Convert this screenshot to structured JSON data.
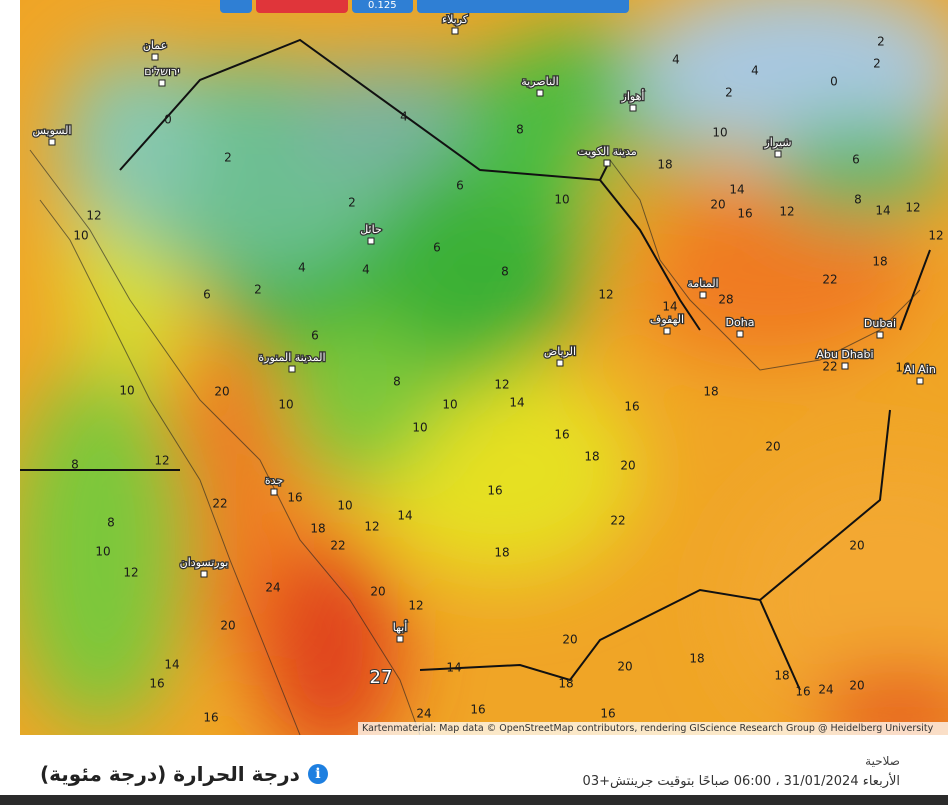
{
  "toolbar": {
    "value": "0.125"
  },
  "map": {
    "cities": [
      "عمان",
      "ירושלים",
      "السويس",
      "كربلاء",
      "الناصرية",
      "أهواز",
      "شيراز",
      "مدينة الكويت",
      "حائل",
      "المنامة",
      "الهفوف",
      "Doha",
      "Dubai",
      "Abu Dhabi",
      "Al Ain",
      "الرياض",
      "المدينة المنورة",
      "جدة",
      "بورتسودان",
      "أبها"
    ],
    "temperatures": [
      2,
      2,
      4,
      4,
      4,
      6,
      6,
      8,
      8,
      10,
      12,
      14,
      18,
      20,
      16,
      14,
      12,
      18,
      22,
      28,
      22,
      18,
      16,
      20,
      22,
      20,
      20,
      14,
      12,
      10,
      10,
      16,
      18,
      16,
      18,
      14,
      12,
      10,
      8,
      10,
      20,
      10,
      12,
      8,
      22,
      16,
      18,
      22,
      8,
      10,
      12,
      24,
      20,
      20,
      12,
      14,
      16,
      16,
      14,
      16,
      24,
      27,
      18,
      20,
      20,
      18,
      16,
      18,
      16,
      24,
      20,
      10,
      12,
      6,
      2,
      6,
      16,
      0,
      2,
      2,
      0,
      2,
      4,
      4,
      10,
      6,
      12,
      12,
      8,
      14
    ],
    "attribution": "Kartenmaterial: Map data © OpenStreetMap contributors, rendering GIScience Research Group @ Heidelberg University"
  },
  "footer": {
    "title": "درجة الحرارة (درجة مئوية)",
    "validity_label": "صلاحية",
    "validity_time": "الأربعاء 31/01/2024 ، 06:00 صباحًا بتوقيت جرينتش+03"
  }
}
